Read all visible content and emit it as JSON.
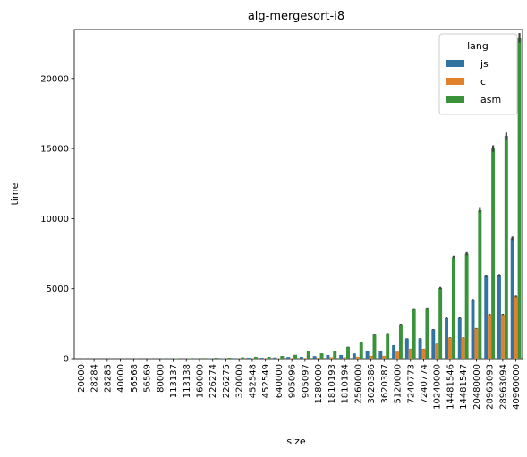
{
  "chart_data": {
    "type": "bar",
    "title": "alg-mergesort-i8",
    "xlabel": "size",
    "ylabel": "time",
    "ylim": [
      0,
      23500
    ],
    "yticks": [
      0,
      5000,
      10000,
      15000,
      20000
    ],
    "grid": false,
    "legend": {
      "title": "lang",
      "placement": "top-right"
    },
    "categories": [
      "20000",
      "28284",
      "28285",
      "40000",
      "56568",
      "56569",
      "80000",
      "113137",
      "113138",
      "160000",
      "226274",
      "226275",
      "320000",
      "452548",
      "452549",
      "640000",
      "905096",
      "905097",
      "1280000",
      "1810193",
      "1810194",
      "2560000",
      "3620386",
      "3620387",
      "5120000",
      "7240773",
      "7240774",
      "10240000",
      "14481546",
      "14481547",
      "20480000",
      "28963093",
      "28963094",
      "40960000"
    ],
    "series": [
      {
        "name": "js",
        "color": "#3274a1",
        "values": [
          3,
          4,
          4,
          5,
          7,
          7,
          10,
          14,
          14,
          20,
          28,
          28,
          40,
          60,
          60,
          85,
          120,
          125,
          180,
          260,
          260,
          370,
          540,
          540,
          950,
          1430,
          1440,
          2080,
          2890,
          2900,
          4200,
          5900,
          5950,
          8600
        ]
      },
      {
        "name": "c",
        "color": "#e1812c",
        "values": [
          1,
          1,
          1,
          2,
          2,
          2,
          3,
          5,
          5,
          7,
          10,
          10,
          15,
          22,
          22,
          30,
          45,
          45,
          65,
          95,
          95,
          135,
          200,
          200,
          500,
          700,
          700,
          1050,
          1500,
          1500,
          2150,
          3150,
          3150,
          4450
        ]
      },
      {
        "name": "asm",
        "color": "#3a923a",
        "values": [
          5,
          7,
          7,
          10,
          14,
          14,
          20,
          30,
          30,
          45,
          65,
          65,
          90,
          130,
          130,
          190,
          270,
          540,
          380,
          550,
          840,
          1200,
          1700,
          1800,
          2450,
          3550,
          3600,
          5050,
          7250,
          7500,
          10600,
          15000,
          15900,
          22900
        ]
      }
    ]
  }
}
